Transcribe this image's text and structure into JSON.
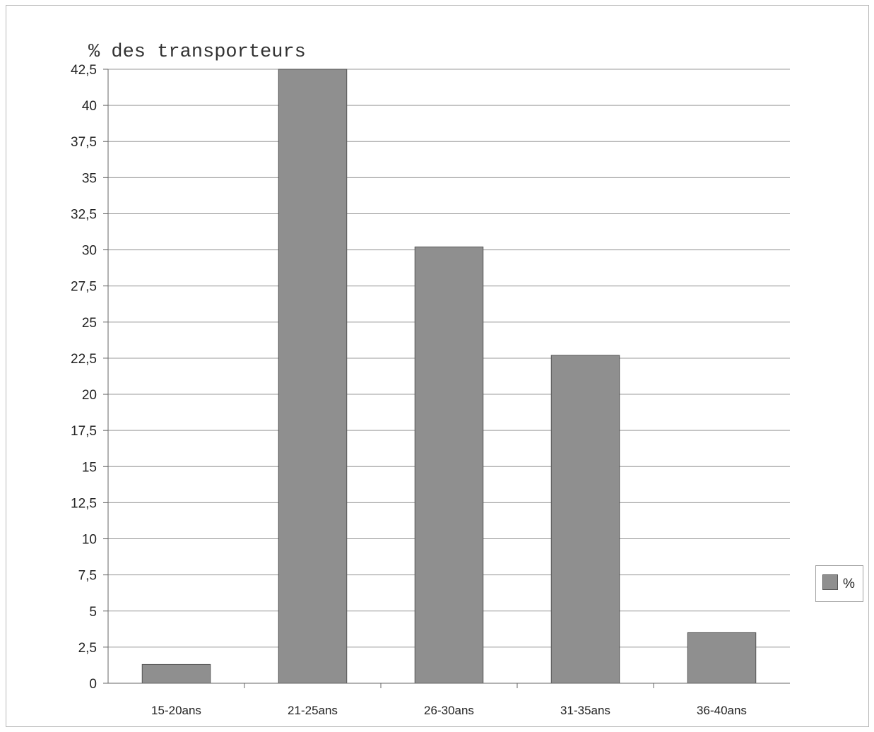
{
  "colors": {
    "bar": "#8f8f8f",
    "bar_edge": "#555555",
    "grid": "#9a9a9a",
    "axis": "#666666"
  },
  "legend": {
    "label": "%"
  },
  "chart_data": {
    "type": "bar",
    "ylabel": "% des transporteurs",
    "xlabel": "",
    "categories": [
      "15-20ans",
      "21-25ans",
      "26-30ans",
      "31-35ans",
      "36-40ans"
    ],
    "series": [
      {
        "name": "%",
        "values": [
          1.3,
          42.5,
          30.2,
          22.7,
          3.5
        ]
      }
    ],
    "ylim": [
      0,
      42.5
    ],
    "yticks": [
      "0",
      "2,5",
      "5",
      "7,5",
      "10",
      "12,5",
      "15",
      "17,5",
      "20",
      "22,5",
      "25",
      "27,5",
      "30",
      "32,5",
      "35",
      "37,5",
      "40",
      "42,5"
    ],
    "grid": true,
    "legend_position": "right"
  }
}
